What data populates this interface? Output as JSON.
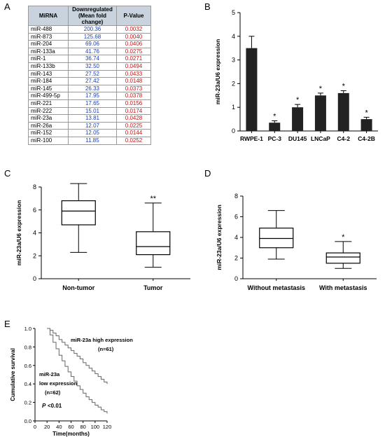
{
  "panels": {
    "a": "A",
    "b": "B",
    "c": "C",
    "d": "D",
    "e": "E"
  },
  "table": {
    "headers": [
      "MiRNA",
      "Downregulated (Mean fold change)",
      "P-Value"
    ],
    "rows": [
      [
        "miR-488",
        "200.36",
        "0.0032"
      ],
      [
        "miR-873",
        "125.68",
        "0.0040"
      ],
      [
        "miR-204",
        "69.06",
        "0.0406"
      ],
      [
        "miR-133a",
        "41.76",
        "0.0275"
      ],
      [
        "miR-1",
        "36.74",
        "0.0271"
      ],
      [
        "miR-133b",
        "32.50",
        "0.0494"
      ],
      [
        "miR-143",
        "27.52",
        "0.0433"
      ],
      [
        "miR-184",
        "27.42",
        "0.0148"
      ],
      [
        "miR-145",
        "26.33",
        "0.0373"
      ],
      [
        "miR-499-5p",
        "17.95",
        "0.0378"
      ],
      [
        "miR-221",
        "17.65",
        "0.0156"
      ],
      [
        "miR-222",
        "15.01",
        "0.0174"
      ],
      [
        "miR-23a",
        "13.81",
        "0.0428"
      ],
      [
        "miR-26a",
        "12.07",
        "0.0225"
      ],
      [
        "miR-152",
        "12.05",
        "0.0144"
      ],
      [
        "miR-100",
        "11.85",
        "0.0252"
      ]
    ]
  },
  "chart_data": [
    {
      "panel": "B",
      "type": "bar",
      "ylabel": "miR-23a/U6 expression",
      "ylim": [
        0,
        5
      ],
      "yticks": [
        0,
        1,
        2,
        3,
        4,
        5
      ],
      "categories": [
        "RWPE-1",
        "PC-3",
        "DU145",
        "LNCaP",
        "C4-2",
        "C4-2B"
      ],
      "values": [
        3.5,
        0.35,
        1.0,
        1.5,
        1.6,
        0.5
      ],
      "errors": [
        0.5,
        0.08,
        0.12,
        0.1,
        0.1,
        0.08
      ],
      "significance": [
        "",
        "*",
        "*",
        "*",
        "*",
        "*"
      ],
      "color": "#222222"
    },
    {
      "panel": "C",
      "type": "box",
      "ylabel": "miR-23a/U6 expression",
      "ylim": [
        0,
        8
      ],
      "yticks": [
        0,
        2,
        4,
        6,
        8
      ],
      "categories": [
        "Non-tumor",
        "Tumor"
      ],
      "boxes": [
        {
          "min": 2.3,
          "q1": 4.7,
          "median": 5.9,
          "q3": 6.8,
          "max": 8.3
        },
        {
          "min": 1.0,
          "q1": 2.1,
          "median": 2.8,
          "q3": 4.1,
          "max": 6.6
        }
      ],
      "significance": [
        "",
        "**"
      ]
    },
    {
      "panel": "D",
      "type": "box",
      "ylabel": "miR-23a/U6 expression",
      "ylim": [
        0,
        8
      ],
      "yticks": [
        0,
        2,
        4,
        6,
        8
      ],
      "categories": [
        "Without metastasis",
        "With metastasis"
      ],
      "boxes": [
        {
          "min": 1.9,
          "q1": 3.0,
          "median": 3.9,
          "q3": 4.9,
          "max": 6.6
        },
        {
          "min": 1.0,
          "q1": 1.5,
          "median": 2.1,
          "q3": 2.5,
          "max": 3.6
        }
      ],
      "significance": [
        "",
        "*"
      ]
    },
    {
      "panel": "E",
      "type": "line",
      "xlabel": "Time(months)",
      "ylabel": "Cumulative survival",
      "xlim": [
        0,
        120
      ],
      "ylim": [
        0,
        1.0
      ],
      "xticks": [
        0,
        20,
        40,
        60,
        80,
        100,
        120
      ],
      "yticks": [
        0,
        0.2,
        0.4,
        0.6,
        0.8,
        1.0
      ],
      "ytick_labels": [
        "0.0",
        "0.2",
        "0.4",
        "0.6",
        "0.8",
        "1.0"
      ],
      "annotations": {
        "high": "miR-23a high expression",
        "high_n": "(n=61)",
        "low_line1": "miR-23a",
        "low_line2": "low expression",
        "low_n": "(n=62)",
        "p_label": "P",
        "p_value": "<0.01"
      },
      "series": [
        {
          "x": [
            20,
            25,
            30,
            35,
            40,
            45,
            50,
            55,
            60,
            65,
            70,
            75,
            80,
            85,
            90,
            95,
            100,
            105,
            110,
            115,
            120
          ],
          "y": [
            1.0,
            0.98,
            0.95,
            0.92,
            0.88,
            0.85,
            0.82,
            0.79,
            0.76,
            0.73,
            0.7,
            0.67,
            0.63,
            0.6,
            0.57,
            0.54,
            0.51,
            0.48,
            0.45,
            0.42,
            0.4
          ]
        },
        {
          "x": [
            20,
            25,
            30,
            35,
            40,
            45,
            50,
            55,
            60,
            65,
            70,
            75,
            80,
            85,
            90,
            95,
            100,
            105,
            110,
            115,
            120
          ],
          "y": [
            1.0,
            0.93,
            0.85,
            0.78,
            0.71,
            0.65,
            0.59,
            0.53,
            0.48,
            0.43,
            0.38,
            0.34,
            0.3,
            0.26,
            0.23,
            0.2,
            0.17,
            0.15,
            0.12,
            0.1,
            0.08
          ]
        }
      ]
    }
  ]
}
